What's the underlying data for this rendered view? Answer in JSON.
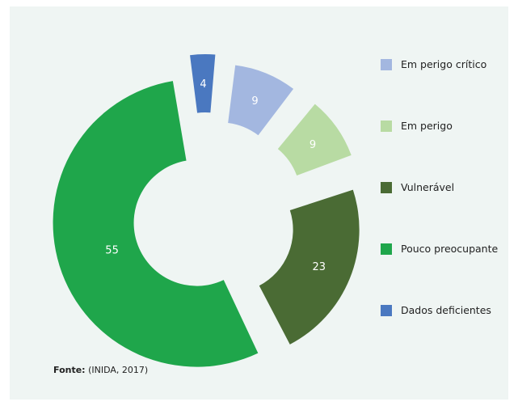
{
  "chart_data": {
    "type": "pie",
    "variant": "donut-exploded",
    "slices": [
      {
        "label": "Em perigo crítico",
        "value": 9,
        "color": "#a3b7e0"
      },
      {
        "label": "Em perigo",
        "value": 9,
        "color": "#b8dba3"
      },
      {
        "label": "Vulnerável",
        "value": 23,
        "color": "#4a6b34"
      },
      {
        "label": "Pouco preocupante",
        "value": 55,
        "color": "#1fa64b"
      },
      {
        "label": "Dados deficientes",
        "value": 4,
        "color": "#4a78c0"
      }
    ],
    "legend_position": "right",
    "value_label_color": "#ffffff"
  },
  "source": {
    "label": "Fonte:",
    "text": "(INIDA, 2017)"
  },
  "colors": {
    "panel_background": "#eff5f3"
  }
}
